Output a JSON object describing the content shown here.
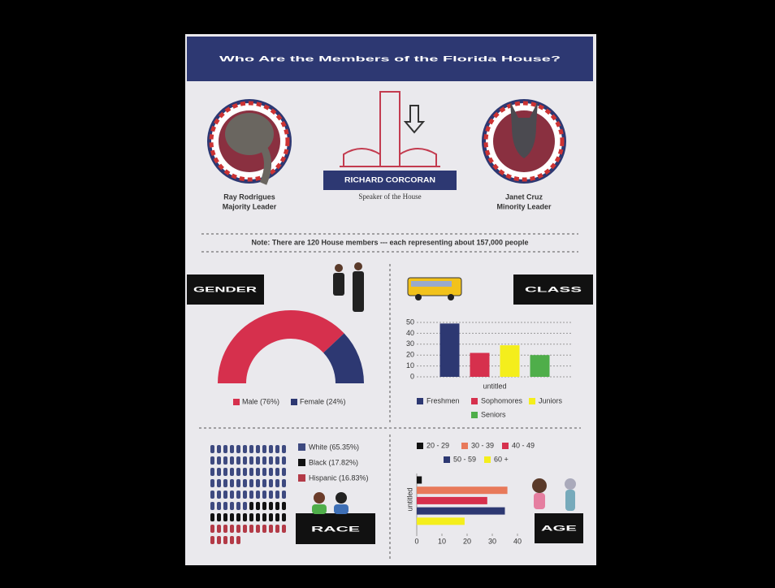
{
  "header": {
    "title": "Who Are the Members of the Florida House?"
  },
  "leaders": {
    "majority": {
      "name": "Ray Rodrigues",
      "role": "Majority Leader"
    },
    "speaker": {
      "name": "RICHARD CORCORAN",
      "role": "Speaker of the House"
    },
    "minority": {
      "name": "Janet Cruz",
      "role": "Minority Leader"
    }
  },
  "note": "Note: There are 120 House members --- each representing about 157,000 people",
  "chart_data": [
    {
      "type": "half-donut",
      "label": "GENDER",
      "categories": [
        "Male (76%)",
        "Female (24%)"
      ],
      "values": [
        76,
        24
      ],
      "colors": [
        "#d6304d",
        "#2d3872"
      ]
    },
    {
      "type": "bar",
      "label": "CLASS",
      "xlabel": "untitled",
      "categories": [
        "Freshmen",
        "Sophomores",
        "Juniors",
        "Seniors"
      ],
      "values": [
        49,
        22,
        29,
        20
      ],
      "colors": [
        "#2d3872",
        "#d6304d",
        "#f4ee1c",
        "#4fae4a"
      ],
      "ylim": [
        0,
        50
      ],
      "yticks": [
        0,
        10,
        20,
        30,
        40,
        50
      ],
      "grid": true
    },
    {
      "type": "pictogram",
      "label": "RACE",
      "categories": [
        "White (65.35%)",
        "Black (17.82%)",
        "Hispanic (16.83%)"
      ],
      "values": [
        65.35,
        17.82,
        16.83
      ],
      "colors": [
        "#3e4a80",
        "#111111",
        "#b33a47"
      ]
    },
    {
      "type": "hbar",
      "label": "AGE",
      "ylabel": "untitled",
      "categories": [
        "20 - 29",
        "30 - 39",
        "40 - 49",
        "50 - 59",
        "60 +"
      ],
      "values": [
        2,
        36,
        28,
        35,
        19
      ],
      "colors": [
        "#111111",
        "#e8795a",
        "#d6304d",
        "#2d3872",
        "#f4ee1c"
      ],
      "xlim": [
        0,
        40
      ],
      "xticks": [
        0,
        10,
        20,
        30,
        40
      ]
    }
  ]
}
